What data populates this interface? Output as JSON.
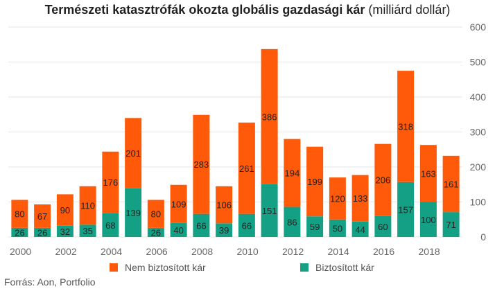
{
  "title": {
    "bold": "Természeti katasztrófák okozta globális gazdasági kár",
    "unit": " (milliárd dollár)"
  },
  "source": "Forrás: Aon, Portfolio",
  "colors": {
    "uninsured": "#ff5a0a",
    "insured": "#14a085",
    "grid": "#e6e6e6",
    "axis_text": "#666666",
    "label_text": "#222222"
  },
  "chart_data": {
    "type": "bar",
    "stacked": true,
    "categories": [
      "2000",
      "2001",
      "2002",
      "2003",
      "2004",
      "2005",
      "2006",
      "2007",
      "2008",
      "2009",
      "2010",
      "2011",
      "2012",
      "2013",
      "2014",
      "2015",
      "2016",
      "2017",
      "2018",
      "2019"
    ],
    "x_tick_labels": [
      "2000",
      "",
      "2002",
      "",
      "2004",
      "",
      "2006",
      "",
      "2008",
      "",
      "2010",
      "",
      "2012",
      "",
      "2014",
      "",
      "2016",
      "",
      "2018",
      ""
    ],
    "series": [
      {
        "name": "Biztosított kár",
        "color": "#14a085",
        "values": [
          26,
          26,
          32,
          35,
          68,
          139,
          26,
          40,
          66,
          39,
          66,
          151,
          86,
          59,
          50,
          44,
          60,
          157,
          100,
          71
        ]
      },
      {
        "name": "Nem biztosított kár",
        "color": "#ff5a0a",
        "values": [
          80,
          67,
          90,
          110,
          176,
          201,
          80,
          109,
          283,
          106,
          261,
          386,
          194,
          199,
          120,
          133,
          206,
          318,
          163,
          161
        ]
      }
    ],
    "ylim": [
      0,
      600
    ],
    "yticks": [
      0,
      100,
      200,
      300,
      400,
      500,
      600
    ],
    "y_axis_position": "right",
    "grid": true,
    "legend": [
      {
        "label": "Nem biztosított kár",
        "color": "#ff5a0a"
      },
      {
        "label": "Biztosított kár",
        "color": "#14a085"
      }
    ],
    "legend_position": "bottom"
  }
}
